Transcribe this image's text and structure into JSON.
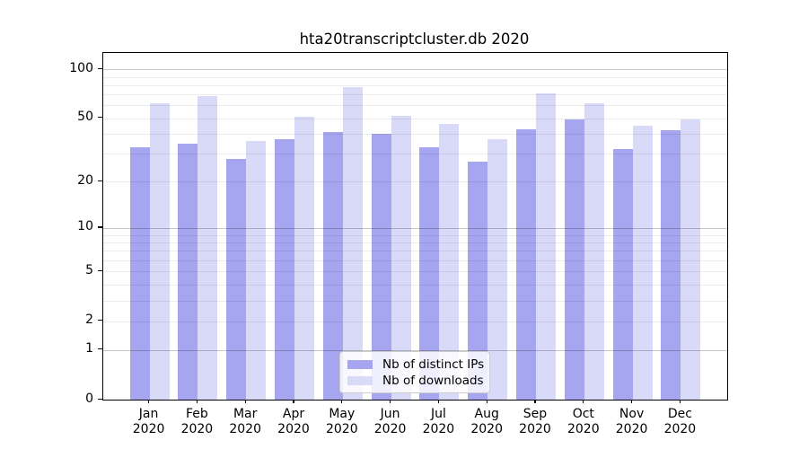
{
  "title": "hta20transcriptcluster.db 2020",
  "chart_data": {
    "type": "bar",
    "title": "hta20transcriptcluster.db 2020",
    "categories": [
      "Jan 2020",
      "Feb 2020",
      "Mar 2020",
      "Apr 2020",
      "May 2020",
      "Jun 2020",
      "Jul 2020",
      "Aug 2020",
      "Sep 2020",
      "Oct 2020",
      "Nov 2020",
      "Dec 2020"
    ],
    "x_tick_months": [
      "Jan",
      "Feb",
      "Mar",
      "Apr",
      "May",
      "Jun",
      "Jul",
      "Aug",
      "Sep",
      "Oct",
      "Nov",
      "Dec"
    ],
    "x_tick_year": "2020",
    "series": [
      {
        "name": "Nb of distinct IPs",
        "color": "#a5a5f0",
        "values": [
          33,
          35,
          28,
          37,
          41,
          40,
          33,
          27,
          43,
          49,
          32,
          42
        ]
      },
      {
        "name": "Nb of downloads",
        "color": "#d9d9f8",
        "values": [
          62,
          69,
          36,
          51,
          78,
          52,
          46,
          37,
          71,
          62,
          45,
          49
        ]
      }
    ],
    "yscale": "log1p",
    "ylim": [
      0,
      126
    ],
    "yticks_labeled": [
      0,
      1,
      2,
      5,
      10,
      20,
      50,
      100
    ],
    "ygrid_major": [
      1,
      10,
      100
    ],
    "ygrid_minor": [
      2,
      3,
      4,
      5,
      6,
      7,
      8,
      9,
      20,
      30,
      40,
      50,
      60,
      70,
      80,
      90
    ],
    "grid": true,
    "legend_position": "lower center",
    "xlabel": "",
    "ylabel": ""
  },
  "legend": {
    "items": [
      {
        "label": "Nb of distinct IPs",
        "color": "#a5a5f0"
      },
      {
        "label": "Nb of downloads",
        "color": "#d9d9f8"
      }
    ]
  },
  "colors": {
    "bar_distinct_ips": "#a5a5f0",
    "bar_downloads": "#d9d9f8",
    "spine": "#000000",
    "grid_minor": "#ebebeb",
    "grid_major": "#c4c4c4",
    "legend_border": "#cccccc"
  }
}
